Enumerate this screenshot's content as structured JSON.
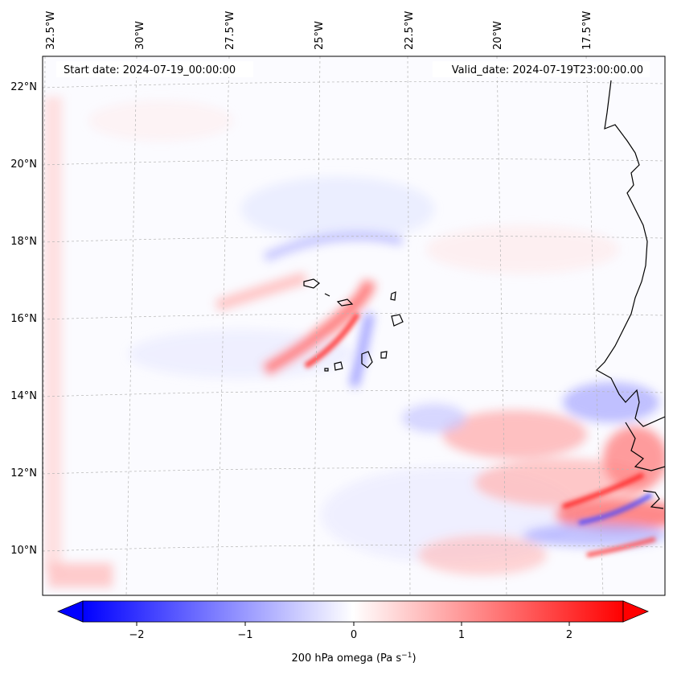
{
  "header": {
    "start_date": "Start date: 2024-07-19_00:00:00",
    "valid_date": "Valid_date: 2024-07-19T23:00:00.00"
  },
  "lon_labels": [
    "32.5°W",
    "30°W",
    "27.5°W",
    "25°W",
    "22.5°W",
    "20°W",
    "17.5°W"
  ],
  "lat_labels": [
    "22°N",
    "20°N",
    "18°N",
    "16°N",
    "14°N",
    "12°N",
    "10°N"
  ],
  "colorbar": {
    "label_main": "200 hPa omega (Pa s",
    "label_exp": "−1",
    "label_close": ")",
    "ticks": [
      "−2",
      "−1",
      "0",
      "1",
      "2"
    ],
    "range": [
      -2.6,
      2.6
    ],
    "cmap": "bwr"
  },
  "colors": {
    "negative": "#0000ff",
    "zero": "#ffffff",
    "positive": "#ff0000",
    "coast": "#000000",
    "grid": "#b0b0b0"
  }
}
